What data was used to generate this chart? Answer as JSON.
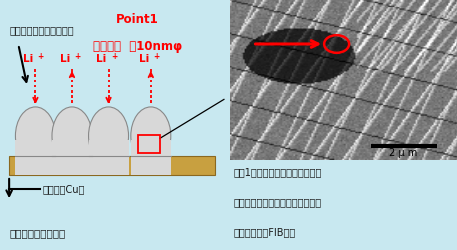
{
  "bg_color": "#c8e8f0",
  "fig_width": 4.57,
  "fig_height": 2.51,
  "dpi": 100,
  "point1_label": "Point1",
  "point1_sublabel": "ビーム径  絀10nmφ",
  "label_anode": "負極材（グラファイト）",
  "label_current": "集電体（Cu）",
  "label_fig": "図　負極部の模式図",
  "label_photo": "写真1　リチウムイオン二次電池",
  "label_photo2": "負極材カーボンの断面の明視野像",
  "label_photo3": "（試料調製：FIB法）",
  "scale_label": "2 μ m",
  "red_color": "#ff0000",
  "dark_color": "#1a1a1a",
  "particle_color": "#d8d8d8",
  "particle_edge": "#888888",
  "cu_color": "#c8a040",
  "cu_edge": "#8a6820"
}
